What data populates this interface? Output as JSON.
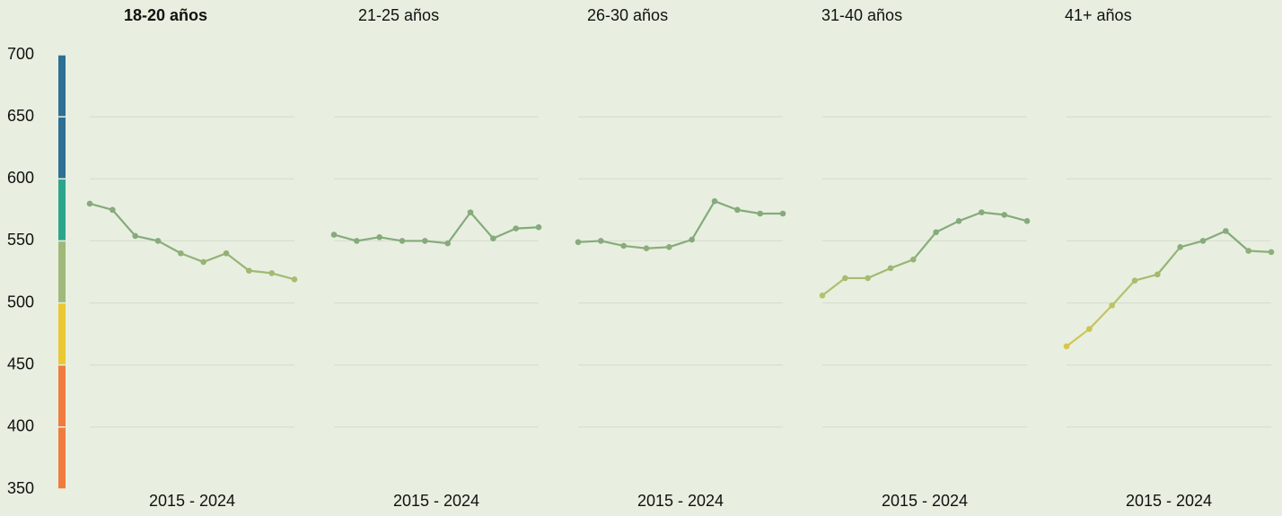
{
  "chart_data": {
    "type": "line",
    "ylim": [
      350,
      700
    ],
    "yticks": [
      350,
      400,
      450,
      500,
      550,
      600,
      650,
      700
    ],
    "grid": true,
    "color_bands": [
      {
        "from": 350,
        "to": 450,
        "color": "#f07b3f"
      },
      {
        "from": 450,
        "to": 500,
        "color": "#e9c832"
      },
      {
        "from": 500,
        "to": 550,
        "color": "#9fb97a"
      },
      {
        "from": 550,
        "to": 600,
        "color": "#2ca58d"
      },
      {
        "from": 600,
        "to": 700,
        "color": "#2e6f94"
      }
    ],
    "line_color_stops": [
      {
        "value": 460,
        "color": "#dcc64a"
      },
      {
        "value": 510,
        "color": "#b0c26c"
      },
      {
        "value": 550,
        "color": "#86aa7c"
      }
    ],
    "panels": [
      {
        "title": "18-20 años",
        "x_label": "2015 - 2024",
        "values": [
          580,
          575,
          554,
          550,
          540,
          533,
          540,
          526,
          524,
          519
        ]
      },
      {
        "title": "21-25 años",
        "x_label": "2015 - 2024",
        "values": [
          555,
          550,
          553,
          550,
          550,
          548,
          573,
          552,
          560,
          561
        ]
      },
      {
        "title": "26-30 años",
        "x_label": "2015 - 2024",
        "values": [
          549,
          550,
          546,
          544,
          545,
          551,
          582,
          575,
          572,
          572
        ]
      },
      {
        "title": "31-40 años",
        "x_label": "2015 - 2024",
        "values": [
          506,
          520,
          520,
          528,
          535,
          557,
          566,
          573,
          571,
          566
        ]
      },
      {
        "title": "41+ años",
        "x_label": "2015 - 2024",
        "values": [
          465,
          479,
          498,
          518,
          523,
          545,
          550,
          558,
          542,
          541
        ]
      }
    ]
  }
}
